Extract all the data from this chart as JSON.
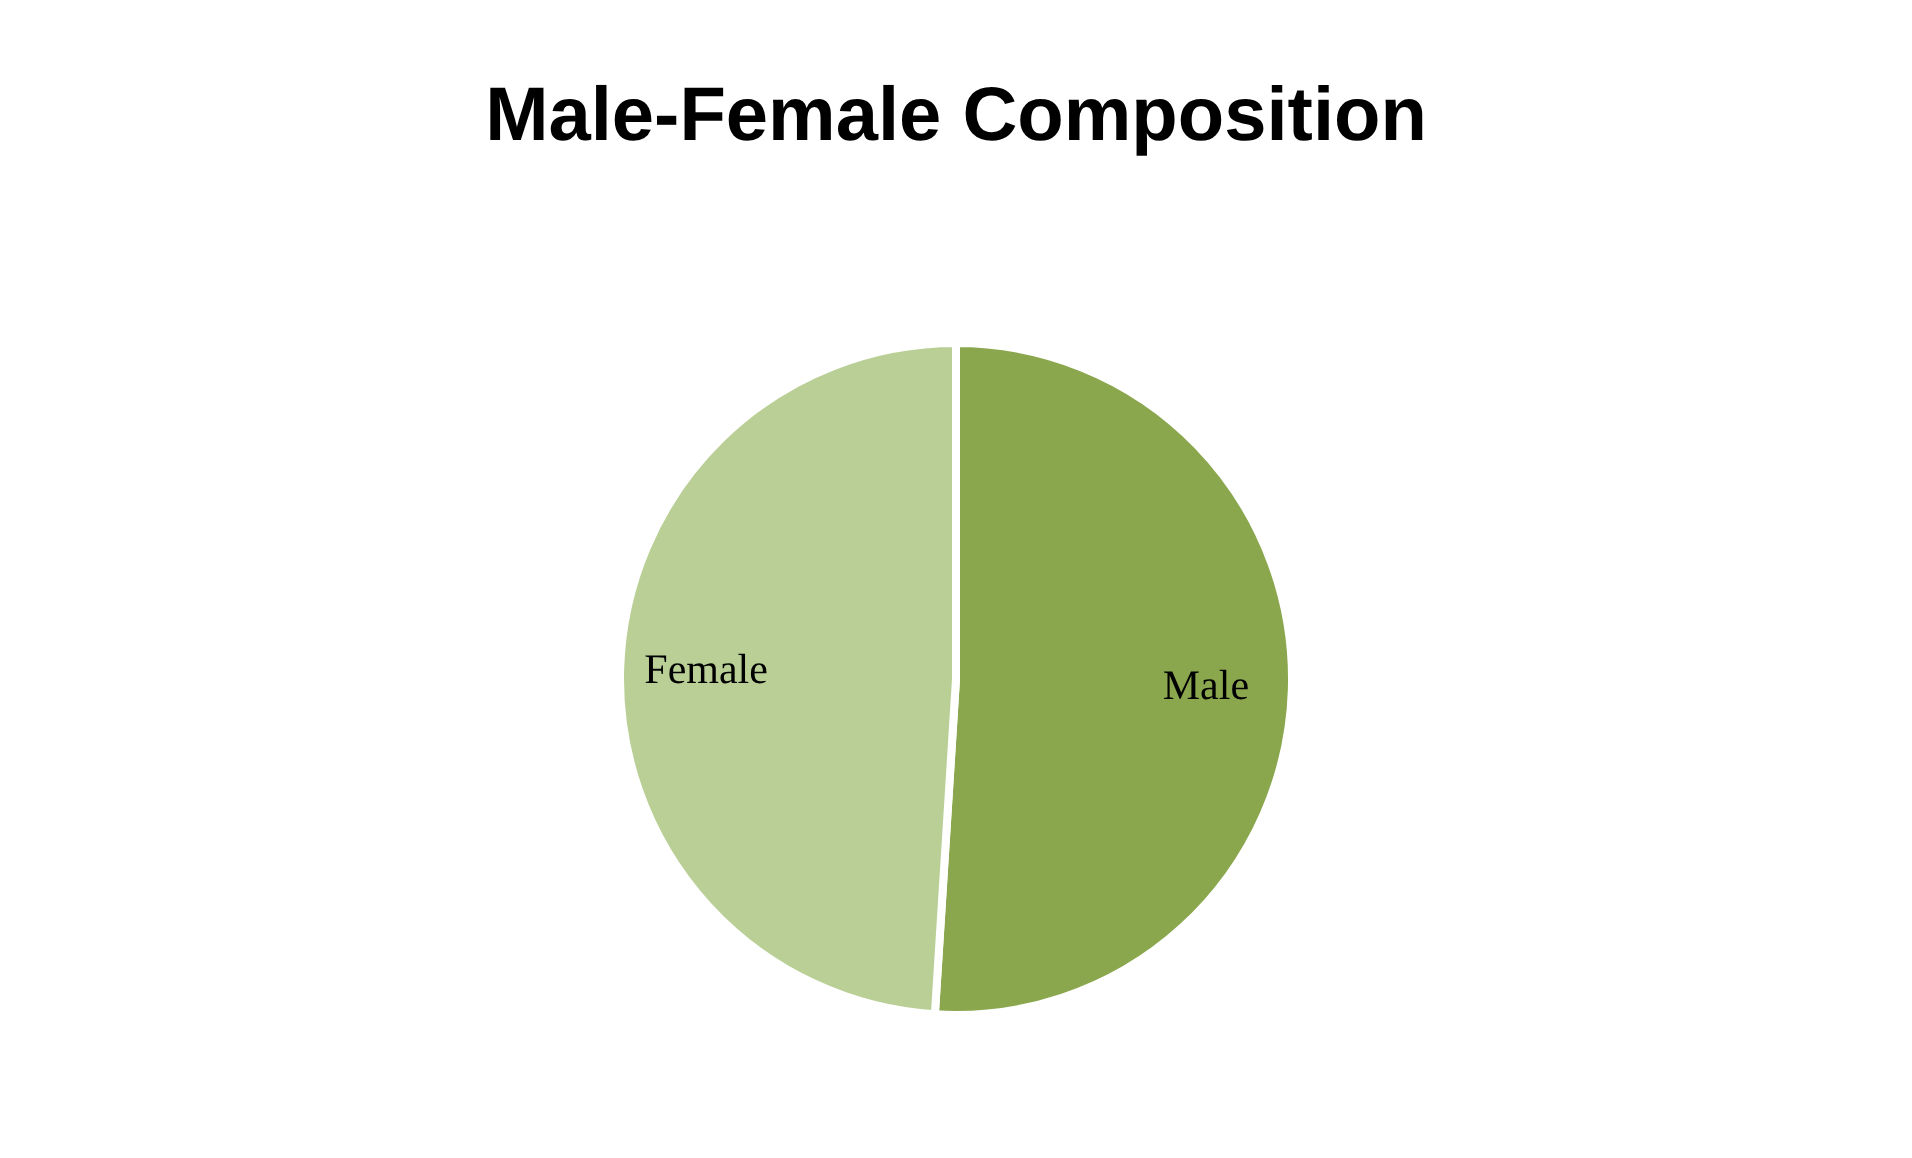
{
  "chart_data": {
    "type": "pie",
    "title": "Male-Female Composition",
    "categories": [
      "Male",
      "Female"
    ],
    "values": [
      51,
      49
    ],
    "colors": [
      "#8aa74e",
      "#b9cf95"
    ]
  }
}
